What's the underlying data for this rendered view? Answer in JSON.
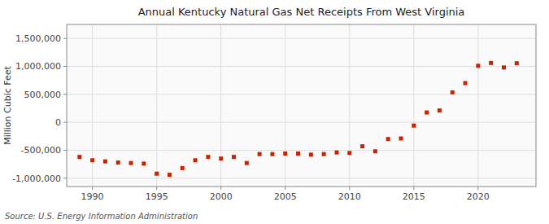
{
  "chart_data": {
    "type": "scatter",
    "title": "Annual Kentucky Natural Gas Net Receipts From West Virginia",
    "ylabel": "Million Cubic Feet",
    "annotation": "Source: U.S. Energy Information Administration",
    "color": "#cc2200",
    "marker": "square",
    "grid": true,
    "xlim": [
      1988.0,
      2024.5
    ],
    "ylim": [
      -1150000,
      1750000
    ],
    "xticks": [
      1990,
      1995,
      2000,
      2005,
      2010,
      2015,
      2020
    ],
    "yticks": [
      {
        "value": -1000000,
        "label": "-1,000,000"
      },
      {
        "value": -500000,
        "label": "-500,000"
      },
      0,
      {
        "value": 500000,
        "label": "500,000"
      },
      {
        "value": 1000000,
        "label": "1,000,000"
      },
      {
        "value": 1500000,
        "label": "1,500,000"
      }
    ],
    "x": [
      1989,
      1990,
      1991,
      1992,
      1993,
      1994,
      1995,
      1996,
      1997,
      1998,
      1999,
      2000,
      2001,
      2002,
      2003,
      2004,
      2005,
      2006,
      2007,
      2008,
      2009,
      2010,
      2011,
      2012,
      2013,
      2014,
      2015,
      2016,
      2017,
      2018,
      2019,
      2020,
      2021,
      2022,
      2023
    ],
    "values": [
      -620000,
      -680000,
      -700000,
      -720000,
      -730000,
      -740000,
      -920000,
      -940000,
      -820000,
      -680000,
      -620000,
      -650000,
      -620000,
      -730000,
      -570000,
      -570000,
      -560000,
      -560000,
      -580000,
      -570000,
      -540000,
      -550000,
      -430000,
      -520000,
      -300000,
      -290000,
      -60000,
      175000,
      210000,
      535000,
      700000,
      1010000,
      1060000,
      980000,
      1055000
    ]
  }
}
